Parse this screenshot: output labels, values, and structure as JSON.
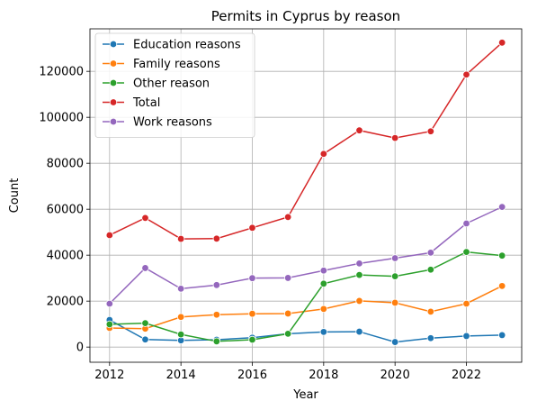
{
  "chart_data": {
    "type": "line",
    "title": "Permits in Cyprus by reason",
    "xlabel": "Year",
    "ylabel": "Count",
    "x": [
      2012,
      2013,
      2014,
      2015,
      2016,
      2017,
      2018,
      2019,
      2020,
      2021,
      2022,
      2023
    ],
    "xlim": [
      2011.45,
      2023.55
    ],
    "ylim": [
      -6600,
      138500
    ],
    "x_ticks": [
      2012,
      2014,
      2016,
      2018,
      2020,
      2022
    ],
    "y_ticks": [
      0,
      20000,
      40000,
      60000,
      80000,
      100000,
      120000
    ],
    "grid": true,
    "legend_position": "top-left",
    "marker": "circle",
    "series": [
      {
        "name": "Education reasons",
        "color": "#1f77b4",
        "values": [
          11800,
          3300,
          2900,
          3200,
          4100,
          5800,
          6600,
          6700,
          2200,
          3900,
          4800,
          5200
        ]
      },
      {
        "name": "Family reasons",
        "color": "#ff7f0e",
        "values": [
          8300,
          8000,
          13100,
          14100,
          14500,
          14600,
          16600,
          20100,
          19300,
          15400,
          18900,
          26600
        ]
      },
      {
        "name": "Other reason",
        "color": "#2ca02c",
        "values": [
          9900,
          10400,
          5500,
          2500,
          3200,
          5800,
          27600,
          31400,
          30800,
          33700,
          41400,
          39800
        ]
      },
      {
        "name": "Total",
        "color": "#d62728",
        "values": [
          48700,
          56200,
          47100,
          47200,
          51900,
          56600,
          84100,
          94300,
          91000,
          93900,
          118600,
          132500
        ]
      },
      {
        "name": "Work reasons",
        "color": "#9467bd",
        "values": [
          18900,
          34400,
          25400,
          27000,
          30000,
          30100,
          33300,
          36400,
          38700,
          41100,
          53800,
          61000
        ]
      }
    ]
  }
}
